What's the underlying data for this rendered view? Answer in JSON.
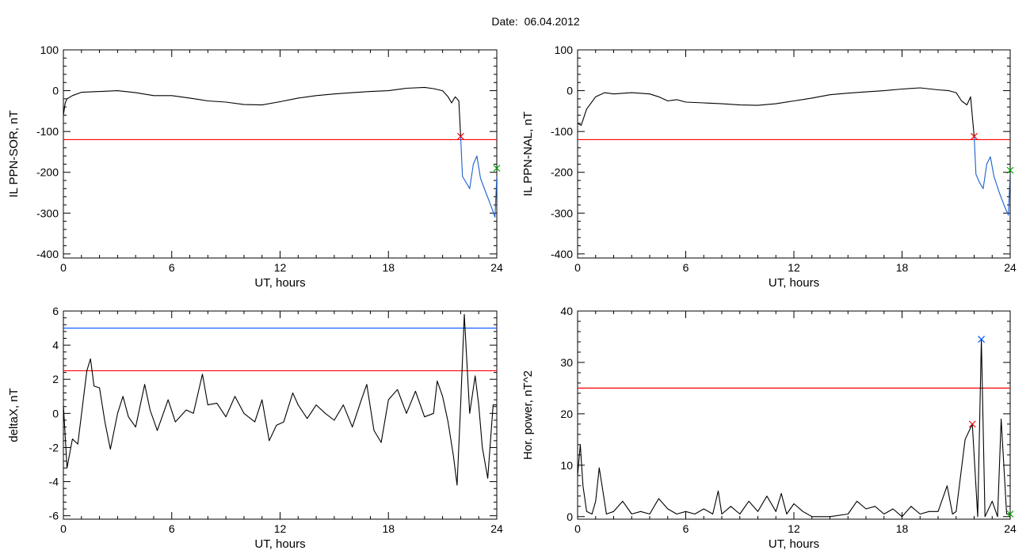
{
  "title": "Date:  06.04.2012",
  "colors": {
    "trace": "#000000",
    "red_threshold": "#ff0000",
    "blue_threshold": "#0055ff",
    "blue_segment": "#1a5fd0",
    "green_marker": "#00aa00"
  },
  "chart_data": [
    {
      "type": "line",
      "ylabel": "IL PPN-SOR, nT",
      "xlabel": "UT, hours",
      "xlim": [
        0,
        24
      ],
      "ylim": [
        -410,
        100
      ],
      "xticks": [
        0,
        6,
        12,
        18,
        24
      ],
      "yticks": [
        -400,
        -300,
        -200,
        -100,
        0,
        100
      ],
      "thresholds": [
        {
          "value": -120,
          "color": "red"
        }
      ],
      "series": [
        {
          "color": "black",
          "points": [
            [
              0,
              -60
            ],
            [
              0.1,
              -30
            ],
            [
              0.2,
              -20
            ],
            [
              0.5,
              -12
            ],
            [
              1,
              -4
            ],
            [
              2,
              -2
            ],
            [
              3,
              0
            ],
            [
              4,
              -5
            ],
            [
              5,
              -12
            ],
            [
              6,
              -12
            ],
            [
              7,
              -18
            ],
            [
              8,
              -25
            ],
            [
              9,
              -28
            ],
            [
              10,
              -34
            ],
            [
              11,
              -35
            ],
            [
              12,
              -27
            ],
            [
              13,
              -18
            ],
            [
              14,
              -12
            ],
            [
              15,
              -8
            ],
            [
              16,
              -5
            ],
            [
              17,
              -2
            ],
            [
              18,
              0
            ],
            [
              19,
              6
            ],
            [
              20,
              8
            ],
            [
              20.5,
              5
            ],
            [
              21,
              0
            ],
            [
              21.3,
              -15
            ],
            [
              21.5,
              -30
            ],
            [
              21.7,
              -15
            ],
            [
              21.9,
              -25
            ],
            [
              22,
              -112
            ]
          ]
        },
        {
          "color": "blue",
          "points": [
            [
              22,
              -112
            ],
            [
              22.1,
              -210
            ],
            [
              22.3,
              -225
            ],
            [
              22.5,
              -240
            ],
            [
              22.7,
              -180
            ],
            [
              22.9,
              -160
            ],
            [
              23.1,
              -215
            ],
            [
              23.4,
              -250
            ],
            [
              23.7,
              -285
            ],
            [
              23.9,
              -310
            ],
            [
              24,
              -210
            ]
          ]
        }
      ],
      "markers": [
        {
          "x": 22,
          "y": -112,
          "symbol": "x",
          "color": "red"
        },
        {
          "x": 24,
          "y": -190,
          "symbol": "x",
          "color": "green"
        }
      ]
    },
    {
      "type": "line",
      "ylabel": "IL PPN-NAL, nT",
      "xlabel": "UT, hours",
      "xlim": [
        0,
        24
      ],
      "ylim": [
        -410,
        100
      ],
      "xticks": [
        0,
        6,
        12,
        18,
        24
      ],
      "yticks": [
        -400,
        -300,
        -200,
        -100,
        0,
        100
      ],
      "thresholds": [
        {
          "value": -120,
          "color": "red"
        }
      ],
      "series": [
        {
          "color": "black",
          "points": [
            [
              0,
              -80
            ],
            [
              0.2,
              -85
            ],
            [
              0.5,
              -45
            ],
            [
              1,
              -15
            ],
            [
              1.5,
              -5
            ],
            [
              2,
              -8
            ],
            [
              3,
              -5
            ],
            [
              4,
              -8
            ],
            [
              4.5,
              -15
            ],
            [
              5,
              -25
            ],
            [
              5.5,
              -22
            ],
            [
              6,
              -28
            ],
            [
              7,
              -30
            ],
            [
              8,
              -32
            ],
            [
              9,
              -35
            ],
            [
              10,
              -36
            ],
            [
              11,
              -32
            ],
            [
              12,
              -25
            ],
            [
              13,
              -18
            ],
            [
              14,
              -10
            ],
            [
              15,
              -6
            ],
            [
              16,
              -3
            ],
            [
              17,
              0
            ],
            [
              18,
              4
            ],
            [
              19,
              7
            ],
            [
              20,
              2
            ],
            [
              20.6,
              0
            ],
            [
              21,
              -5
            ],
            [
              21.3,
              -25
            ],
            [
              21.6,
              -35
            ],
            [
              21.8,
              -15
            ],
            [
              22,
              -112
            ]
          ]
        },
        {
          "color": "blue",
          "points": [
            [
              22,
              -112
            ],
            [
              22.1,
              -205
            ],
            [
              22.3,
              -225
            ],
            [
              22.5,
              -240
            ],
            [
              22.7,
              -180
            ],
            [
              22.9,
              -162
            ],
            [
              23.1,
              -210
            ],
            [
              23.4,
              -250
            ],
            [
              23.7,
              -285
            ],
            [
              23.9,
              -305
            ],
            [
              24,
              -200
            ]
          ]
        }
      ],
      "markers": [
        {
          "x": 22,
          "y": -112,
          "symbol": "x",
          "color": "red"
        },
        {
          "x": 24,
          "y": -195,
          "symbol": "x",
          "color": "green"
        }
      ]
    },
    {
      "type": "line",
      "ylabel": "deltaX, nT",
      "xlabel": "UT, hours",
      "xlim": [
        0,
        24
      ],
      "ylim": [
        -6.2,
        6
      ],
      "xticks": [
        0,
        6,
        12,
        18,
        24
      ],
      "yticks": [
        -6,
        -4,
        -2,
        0,
        2,
        4,
        6
      ],
      "thresholds": [
        {
          "value": 2.5,
          "color": "red"
        },
        {
          "value": 5,
          "color": "blue"
        }
      ],
      "series": [
        {
          "color": "black",
          "points": [
            [
              0,
              0.5
            ],
            [
              0.2,
              -3.2
            ],
            [
              0.5,
              -1.5
            ],
            [
              0.8,
              -1.8
            ],
            [
              1.1,
              0.8
            ],
            [
              1.3,
              2.5
            ],
            [
              1.5,
              3.2
            ],
            [
              1.7,
              1.6
            ],
            [
              2,
              1.5
            ],
            [
              2.3,
              -0.5
            ],
            [
              2.6,
              -2.1
            ],
            [
              3,
              0
            ],
            [
              3.3,
              1.0
            ],
            [
              3.6,
              -0.2
            ],
            [
              4,
              -0.8
            ],
            [
              4.5,
              1.7
            ],
            [
              4.8,
              0.2
            ],
            [
              5.2,
              -1.0
            ],
            [
              5.8,
              0.8
            ],
            [
              6.2,
              -0.5
            ],
            [
              6.8,
              0.2
            ],
            [
              7.2,
              0
            ],
            [
              7.7,
              2.3
            ],
            [
              8,
              0.5
            ],
            [
              8.5,
              0.6
            ],
            [
              9,
              -0.2
            ],
            [
              9.5,
              1.0
            ],
            [
              10,
              0
            ],
            [
              10.6,
              -0.5
            ],
            [
              11,
              0.8
            ],
            [
              11.4,
              -1.6
            ],
            [
              11.8,
              -0.7
            ],
            [
              12.2,
              -0.5
            ],
            [
              12.7,
              1.2
            ],
            [
              13,
              0.5
            ],
            [
              13.5,
              -0.3
            ],
            [
              14,
              0.5
            ],
            [
              14.5,
              0
            ],
            [
              15,
              -0.4
            ],
            [
              15.5,
              0.5
            ],
            [
              16,
              -0.8
            ],
            [
              16.5,
              0.8
            ],
            [
              16.8,
              1.7
            ],
            [
              17.2,
              -1.0
            ],
            [
              17.6,
              -1.7
            ],
            [
              18,
              0.8
            ],
            [
              18.5,
              1.4
            ],
            [
              19,
              0
            ],
            [
              19.5,
              1.3
            ],
            [
              20,
              -0.2
            ],
            [
              20.5,
              0
            ],
            [
              20.7,
              1.9
            ],
            [
              21,
              1.0
            ],
            [
              21.3,
              -0.5
            ],
            [
              21.6,
              -2.5
            ],
            [
              21.8,
              -4.2
            ],
            [
              22,
              0.5
            ],
            [
              22.2,
              5.8
            ],
            [
              22.5,
              0
            ],
            [
              22.8,
              2.2
            ],
            [
              23,
              0.5
            ],
            [
              23.2,
              -2.0
            ],
            [
              23.5,
              -3.8
            ],
            [
              23.8,
              0.5
            ],
            [
              24,
              0.5
            ]
          ]
        }
      ],
      "markers": []
    },
    {
      "type": "line",
      "ylabel": "Hor. power, nT^2",
      "xlabel": "UT, hours",
      "xlim": [
        0,
        24
      ],
      "ylim": [
        -0.5,
        40
      ],
      "xticks": [
        0,
        6,
        12,
        18,
        24
      ],
      "yticks": [
        0,
        10,
        20,
        30,
        40
      ],
      "thresholds": [
        {
          "value": 25,
          "color": "red"
        }
      ],
      "series": [
        {
          "color": "black",
          "points": [
            [
              0,
              8
            ],
            [
              0.15,
              14
            ],
            [
              0.3,
              6
            ],
            [
              0.5,
              1
            ],
            [
              0.8,
              0.5
            ],
            [
              1,
              3
            ],
            [
              1.2,
              9.5
            ],
            [
              1.4,
              5
            ],
            [
              1.6,
              0.5
            ],
            [
              2,
              1
            ],
            [
              2.5,
              3
            ],
            [
              3,
              0.5
            ],
            [
              3.5,
              1
            ],
            [
              4,
              0.5
            ],
            [
              4.5,
              3.5
            ],
            [
              5,
              1.5
            ],
            [
              5.5,
              0.5
            ],
            [
              6,
              1
            ],
            [
              6.5,
              0.5
            ],
            [
              7,
              1.5
            ],
            [
              7.5,
              0.5
            ],
            [
              7.8,
              5
            ],
            [
              8,
              0.5
            ],
            [
              8.5,
              2
            ],
            [
              9,
              0.5
            ],
            [
              9.5,
              3
            ],
            [
              10,
              1
            ],
            [
              10.5,
              4
            ],
            [
              11,
              1
            ],
            [
              11.3,
              4.5
            ],
            [
              11.6,
              0.5
            ],
            [
              12,
              2.5
            ],
            [
              12.5,
              1
            ],
            [
              13,
              0
            ],
            [
              14,
              0
            ],
            [
              15,
              0.5
            ],
            [
              15.5,
              3
            ],
            [
              16,
              1.5
            ],
            [
              16.5,
              2
            ],
            [
              17,
              0.5
            ],
            [
              17.5,
              1.5
            ],
            [
              18,
              0
            ],
            [
              18.5,
              2
            ],
            [
              19,
              0.5
            ],
            [
              19.5,
              1
            ],
            [
              20,
              1
            ],
            [
              20.5,
              6
            ],
            [
              20.8,
              0.5
            ],
            [
              21,
              1
            ],
            [
              21.5,
              15
            ],
            [
              21.9,
              18
            ],
            [
              22.2,
              0
            ],
            [
              22.4,
              34.5
            ],
            [
              22.6,
              0
            ],
            [
              23,
              3
            ],
            [
              23.3,
              0
            ],
            [
              23.5,
              19
            ],
            [
              23.8,
              0.5
            ],
            [
              24,
              0.5
            ]
          ]
        }
      ],
      "markers": [
        {
          "x": 21.9,
          "y": 18,
          "symbol": "x",
          "color": "red"
        },
        {
          "x": 22.4,
          "y": 34.5,
          "symbol": "x",
          "color": "blue"
        },
        {
          "x": 24,
          "y": 0.5,
          "symbol": "x",
          "color": "green"
        }
      ]
    }
  ]
}
